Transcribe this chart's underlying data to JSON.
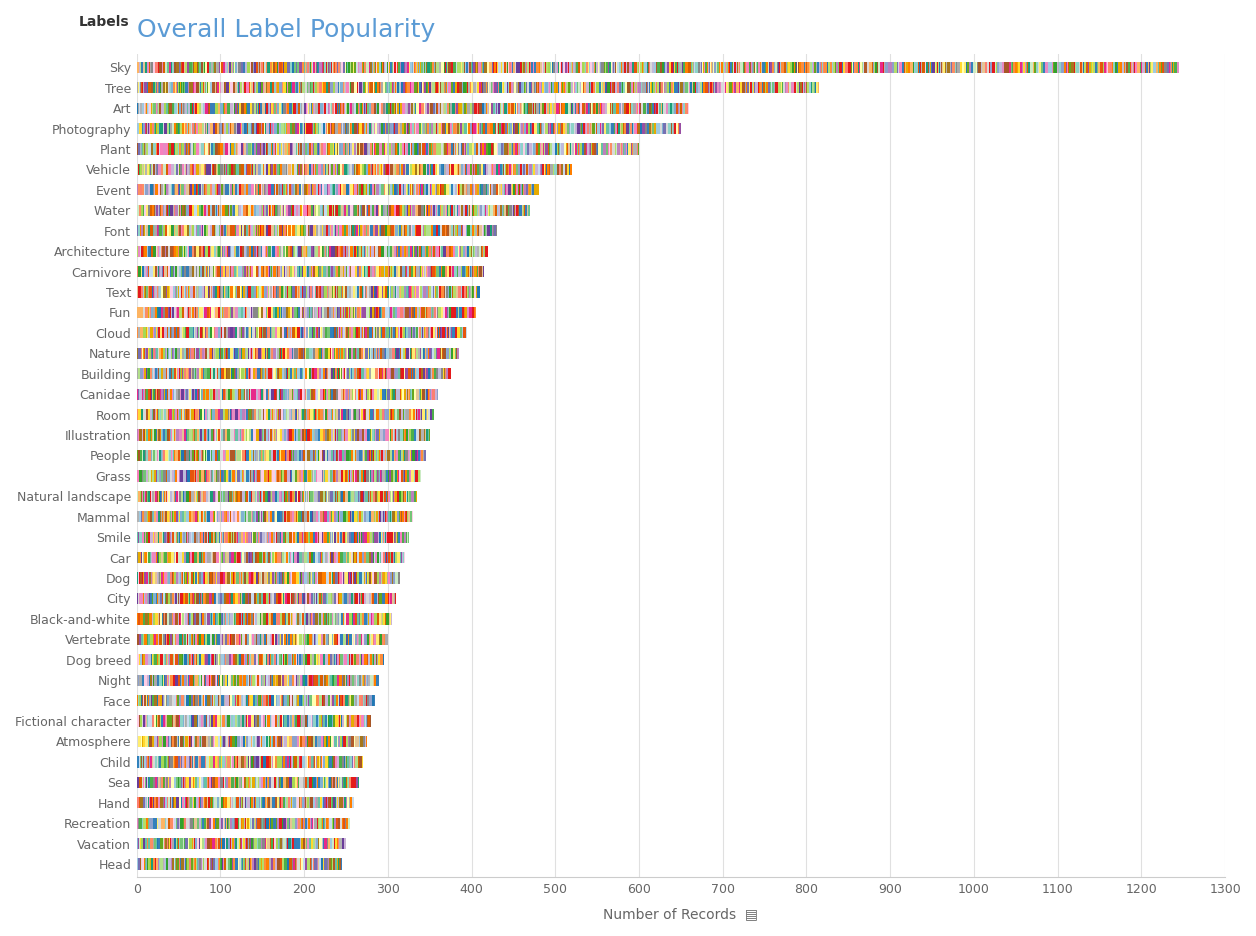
{
  "title": "Overall Label Popularity",
  "title_color": "#5b9bd5",
  "xlabel": "Number of Records",
  "ylabel_label": "Labels",
  "categories": [
    "Sky",
    "Tree",
    "Art",
    "Photography",
    "Plant",
    "Vehicle",
    "Event",
    "Water",
    "Font",
    "Architecture",
    "Carnivore",
    "Text",
    "Fun",
    "Cloud",
    "Nature",
    "Building",
    "Canidae",
    "Room",
    "Illustration",
    "People",
    "Grass",
    "Natural landscape",
    "Mammal",
    "Smile",
    "Car",
    "Dog",
    "City",
    "Black-and-white",
    "Vertebrate",
    "Dog breed",
    "Night",
    "Face",
    "Fictional character",
    "Atmosphere",
    "Child",
    "Sea",
    "Hand",
    "Recreation",
    "Vacation",
    "Head"
  ],
  "totals": [
    1245,
    815,
    660,
    650,
    600,
    520,
    480,
    470,
    430,
    420,
    415,
    410,
    405,
    395,
    385,
    375,
    360,
    355,
    350,
    345,
    340,
    335,
    330,
    325,
    320,
    315,
    310,
    305,
    300,
    295,
    290,
    285,
    280,
    275,
    270,
    265,
    260,
    255,
    250,
    245
  ],
  "xlim": [
    0,
    1300
  ],
  "xticks": [
    0,
    100,
    200,
    300,
    400,
    500,
    600,
    700,
    800,
    900,
    1000,
    1100,
    1200,
    1300
  ],
  "background_color": "#ffffff",
  "bar_height": 0.55,
  "segment_colors": [
    "#e41a1c",
    "#377eb8",
    "#4daf4a",
    "#984ea3",
    "#ff7f00",
    "#a65628",
    "#f781bf",
    "#aaaaaa",
    "#66c2a5",
    "#fc8d62",
    "#8da0cb",
    "#e78ac3",
    "#a6d854",
    "#ffd92f",
    "#e5c494",
    "#b3b3b3",
    "#1b9e77",
    "#d95f02",
    "#7570b3",
    "#e7298a",
    "#66a61e",
    "#e6ab02",
    "#a6761d",
    "#888888",
    "#8dd3c7",
    "#ffffb3",
    "#bebada",
    "#fb8072",
    "#80b1d3",
    "#fdb462",
    "#b3de69",
    "#fccde5",
    "#d9d9d9",
    "#bc80bd",
    "#ccebc5",
    "#ffed6f",
    "#1f78b4",
    "#b2df8a",
    "#33a02c",
    "#e31a1c",
    "#ff7f00",
    "#cab2d6",
    "#6a3d9a",
    "#b15928",
    "#74c476",
    "#fd8d3c",
    "#c6dbef",
    "#9ecae1",
    "#3182bd",
    "#e6550d"
  ],
  "title_fontsize": 18,
  "tick_fontsize": 9,
  "label_fontsize": 9
}
